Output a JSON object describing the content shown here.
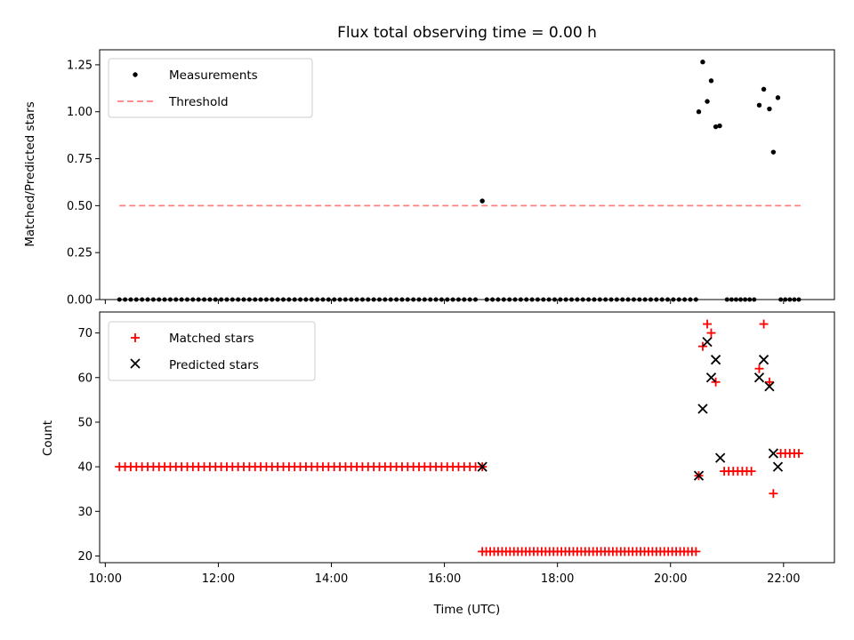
{
  "chart_data": [
    {
      "type": "scatter",
      "title": "Flux total observing time = 0.00 h",
      "xlabel": "",
      "ylabel": "Matched/Predicted stars",
      "ylim": [
        0,
        1.33
      ],
      "xlim": [
        9.9,
        22.9
      ],
      "yticks": [
        0.0,
        0.25,
        0.5,
        0.75,
        1.0,
        1.25
      ],
      "ytick_labels": [
        "0.00",
        "0.25",
        "0.50",
        "0.75",
        "1.00",
        "1.25"
      ],
      "legend_position": "top-left",
      "legend": [
        "Measurements",
        "Threshold"
      ],
      "colors": {
        "measurements": "#000000",
        "threshold": "#ff7f7f"
      },
      "threshold": {
        "value": 0.5,
        "x_start": 10.25,
        "x_end": 22.3
      },
      "series": [
        {
          "name": "Measurements",
          "zero_runs": [
            [
              10.25,
              16.6,
              0.1
            ],
            [
              16.75,
              20.45,
              0.1
            ],
            [
              21.0,
              21.5,
              0.08
            ],
            [
              21.95,
              22.3,
              0.08
            ]
          ],
          "points": [
            [
              16.67,
              0.525
            ],
            [
              20.5,
              1.0
            ],
            [
              20.57,
              1.265
            ],
            [
              20.65,
              1.055
            ],
            [
              20.72,
              1.165
            ],
            [
              20.8,
              0.92
            ],
            [
              20.87,
              0.925
            ],
            [
              21.57,
              1.035
            ],
            [
              21.65,
              1.12
            ],
            [
              21.75,
              1.015
            ],
            [
              21.82,
              0.785
            ],
            [
              21.9,
              1.075
            ]
          ]
        }
      ]
    },
    {
      "type": "scatter",
      "title": "",
      "xlabel": "Time (UTC)",
      "ylabel": "Count",
      "ylim": [
        18.5,
        74.7
      ],
      "xlim": [
        9.9,
        22.9
      ],
      "yticks": [
        20,
        30,
        40,
        50,
        60,
        70
      ],
      "ytick_labels": [
        "20",
        "30",
        "40",
        "50",
        "60",
        "70"
      ],
      "xticks": [
        10,
        12,
        14,
        16,
        18,
        20,
        22
      ],
      "xtick_labels": [
        "10:00",
        "12:00",
        "14:00",
        "16:00",
        "18:00",
        "20:00",
        "22:00"
      ],
      "legend_position": "top-left",
      "legend": [
        "Matched stars",
        "Predicted stars"
      ],
      "colors": {
        "matched": "#ff0000",
        "predicted": "#000000"
      },
      "series": [
        {
          "name": "Matched stars",
          "runs": [
            [
              10.25,
              16.6,
              0.1,
              40
            ],
            [
              16.67,
              20.45,
              0.07,
              21
            ],
            [
              20.95,
              21.5,
              0.08,
              39
            ],
            [
              21.95,
              22.3,
              0.08,
              43
            ]
          ],
          "points": [
            [
              16.67,
              40
            ],
            [
              20.5,
              38
            ],
            [
              20.57,
              67
            ],
            [
              20.65,
              72
            ],
            [
              20.72,
              70
            ],
            [
              20.8,
              59
            ],
            [
              21.57,
              62
            ],
            [
              21.65,
              72
            ],
            [
              21.75,
              59
            ],
            [
              21.82,
              34
            ]
          ]
        },
        {
          "name": "Predicted stars",
          "points": [
            [
              16.67,
              40
            ],
            [
              20.5,
              38
            ],
            [
              20.57,
              53
            ],
            [
              20.65,
              68
            ],
            [
              20.72,
              60
            ],
            [
              20.8,
              64
            ],
            [
              20.88,
              42
            ],
            [
              21.57,
              60
            ],
            [
              21.65,
              64
            ],
            [
              21.75,
              58
            ],
            [
              21.82,
              43
            ],
            [
              21.9,
              40
            ]
          ]
        }
      ]
    }
  ]
}
